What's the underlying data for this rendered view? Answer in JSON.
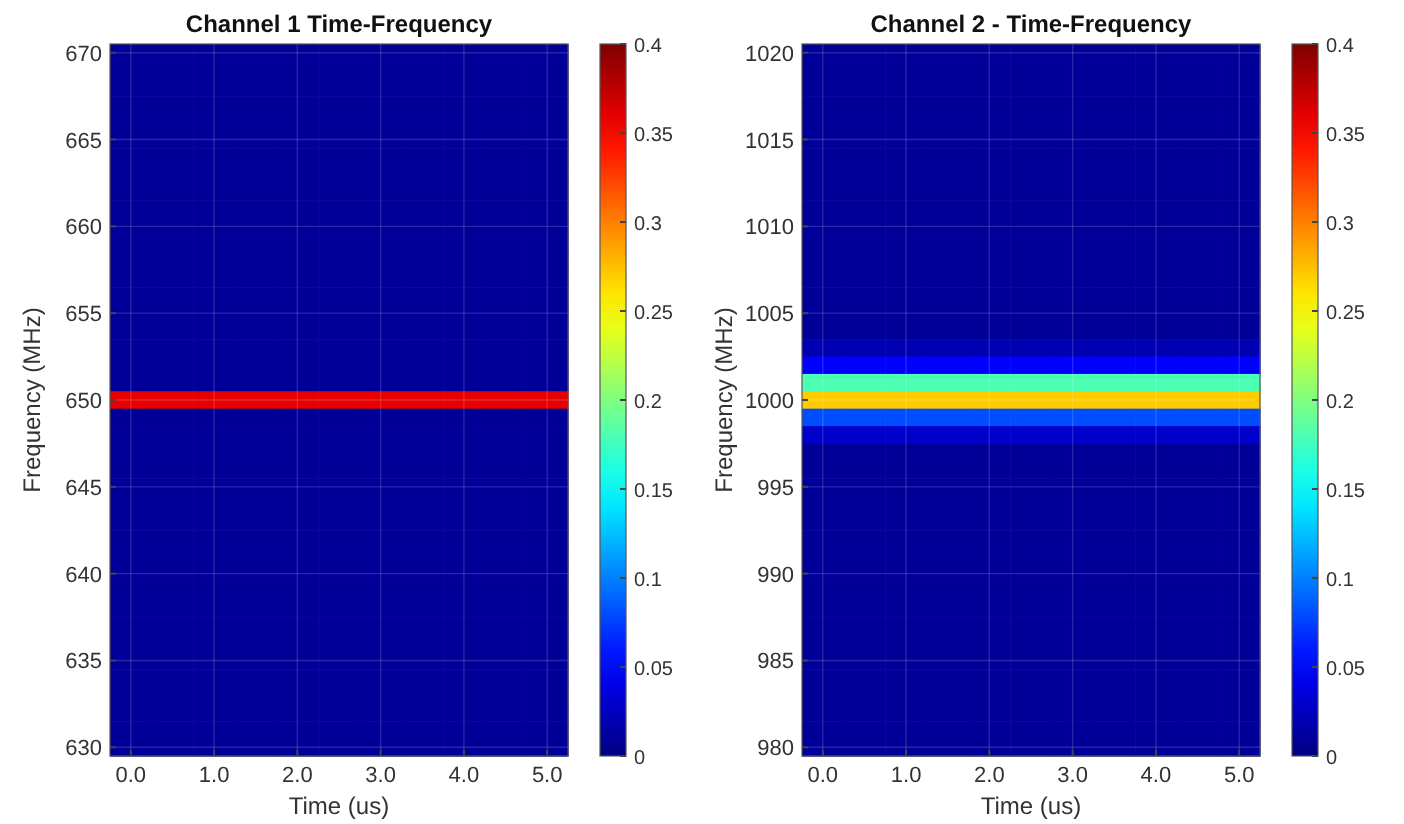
{
  "chart_data": [
    {
      "type": "heatmap",
      "title": "Channel 1 Time-Frequency",
      "xlabel": "Time (us)",
      "ylabel": "Frequency (MHz)",
      "categories": [
        "0.0",
        null,
        "1.0",
        null,
        "2.0",
        null,
        "3.0",
        null,
        "4.0",
        null,
        "5.0"
      ],
      "y_categories": [
        "670",
        null,
        null,
        null,
        null,
        "665",
        null,
        null,
        null,
        null,
        "660",
        null,
        null,
        null,
        null,
        "655",
        null,
        null,
        null,
        null,
        "650",
        null,
        null,
        null,
        null,
        "645",
        null,
        null,
        null,
        null,
        "640",
        null,
        null,
        null,
        null,
        "635",
        null,
        null,
        null,
        null,
        "630"
      ],
      "cells": [
        [
          0.01,
          0.01,
          0.01,
          0.01,
          0.01,
          0.01,
          0.01,
          0.01,
          0.01,
          0.01,
          0.01
        ],
        [
          0.01,
          0.01,
          0.01,
          0.01,
          0.01,
          0.01,
          0.01,
          0.01,
          0.01,
          0.01,
          0.01
        ],
        [
          0.01,
          0.01,
          0.01,
          0.01,
          0.01,
          0.01,
          0.01,
          0.01,
          0.01,
          0.01,
          0.01
        ],
        [
          0.01,
          0.01,
          0.01,
          0.01,
          0.01,
          0.01,
          0.01,
          0.01,
          0.01,
          0.01,
          0.01
        ],
        [
          0.01,
          0.01,
          0.01,
          0.01,
          0.01,
          0.01,
          0.01,
          0.01,
          0.01,
          0.01,
          0.01
        ],
        [
          0.01,
          0.01,
          0.01,
          0.01,
          0.01,
          0.01,
          0.01,
          0.01,
          0.01,
          0.01,
          0.01
        ],
        [
          0.01,
          0.01,
          0.01,
          0.01,
          0.01,
          0.01,
          0.01,
          0.01,
          0.01,
          0.01,
          0.01
        ],
        [
          0.01,
          0.01,
          0.01,
          0.01,
          0.01,
          0.01,
          0.01,
          0.01,
          0.01,
          0.01,
          0.01
        ],
        [
          0.01,
          0.01,
          0.01,
          0.01,
          0.01,
          0.01,
          0.01,
          0.01,
          0.01,
          0.01,
          0.01
        ],
        [
          0.01,
          0.01,
          0.01,
          0.01,
          0.01,
          0.01,
          0.01,
          0.01,
          0.01,
          0.01,
          0.01
        ],
        [
          0.01,
          0.01,
          0.01,
          0.01,
          0.01,
          0.01,
          0.01,
          0.01,
          0.01,
          0.01,
          0.01
        ],
        [
          0.01,
          0.01,
          0.01,
          0.01,
          0.01,
          0.01,
          0.01,
          0.01,
          0.01,
          0.01,
          0.01
        ],
        [
          0.01,
          0.01,
          0.01,
          0.01,
          0.01,
          0.01,
          0.01,
          0.01,
          0.01,
          0.01,
          0.01
        ],
        [
          0.01,
          0.01,
          0.01,
          0.01,
          0.01,
          0.01,
          0.01,
          0.01,
          0.01,
          0.01,
          0.01
        ],
        [
          0.01,
          0.01,
          0.01,
          0.01,
          0.01,
          0.01,
          0.01,
          0.01,
          0.01,
          0.01,
          0.01
        ],
        [
          0.01,
          0.01,
          0.01,
          0.01,
          0.01,
          0.01,
          0.01,
          0.01,
          0.01,
          0.01,
          0.01
        ],
        [
          0.01,
          0.01,
          0.01,
          0.01,
          0.01,
          0.01,
          0.01,
          0.01,
          0.01,
          0.01,
          0.01
        ],
        [
          0.01,
          0.01,
          0.01,
          0.01,
          0.01,
          0.01,
          0.01,
          0.01,
          0.01,
          0.01,
          0.01
        ],
        [
          0.01,
          0.01,
          0.01,
          0.01,
          0.01,
          0.01,
          0.01,
          0.01,
          0.01,
          0.01,
          0.01
        ],
        [
          0.01,
          0.01,
          0.01,
          0.01,
          0.01,
          0.01,
          0.01,
          0.01,
          0.01,
          0.01,
          0.01
        ],
        [
          0.36,
          0.36,
          0.36,
          0.36,
          0.36,
          0.36,
          0.36,
          0.36,
          0.36,
          0.36,
          0.36
        ],
        [
          0.01,
          0.01,
          0.01,
          0.01,
          0.01,
          0.01,
          0.01,
          0.01,
          0.01,
          0.01,
          0.01
        ],
        [
          0.01,
          0.01,
          0.01,
          0.01,
          0.01,
          0.01,
          0.01,
          0.01,
          0.01,
          0.01,
          0.01
        ],
        [
          0.01,
          0.01,
          0.01,
          0.01,
          0.01,
          0.01,
          0.01,
          0.01,
          0.01,
          0.01,
          0.01
        ],
        [
          0.01,
          0.01,
          0.01,
          0.01,
          0.01,
          0.01,
          0.01,
          0.01,
          0.01,
          0.01,
          0.01
        ],
        [
          0.01,
          0.01,
          0.01,
          0.01,
          0.01,
          0.01,
          0.01,
          0.01,
          0.01,
          0.01,
          0.01
        ],
        [
          0.01,
          0.01,
          0.01,
          0.01,
          0.01,
          0.01,
          0.01,
          0.01,
          0.01,
          0.01,
          0.01
        ],
        [
          0.01,
          0.01,
          0.01,
          0.01,
          0.01,
          0.01,
          0.01,
          0.01,
          0.01,
          0.01,
          0.01
        ],
        [
          0.01,
          0.01,
          0.01,
          0.01,
          0.01,
          0.01,
          0.01,
          0.01,
          0.01,
          0.01,
          0.01
        ],
        [
          0.01,
          0.01,
          0.01,
          0.01,
          0.01,
          0.01,
          0.01,
          0.01,
          0.01,
          0.01,
          0.01
        ],
        [
          0.01,
          0.01,
          0.01,
          0.01,
          0.01,
          0.01,
          0.01,
          0.01,
          0.01,
          0.01,
          0.01
        ],
        [
          0.01,
          0.01,
          0.01,
          0.01,
          0.01,
          0.01,
          0.01,
          0.01,
          0.01,
          0.01,
          0.01
        ],
        [
          0.01,
          0.01,
          0.01,
          0.01,
          0.01,
          0.01,
          0.01,
          0.01,
          0.01,
          0.01,
          0.01
        ],
        [
          0.01,
          0.01,
          0.01,
          0.01,
          0.01,
          0.01,
          0.01,
          0.01,
          0.01,
          0.01,
          0.01
        ],
        [
          0.01,
          0.01,
          0.01,
          0.01,
          0.01,
          0.01,
          0.01,
          0.01,
          0.01,
          0.01,
          0.01
        ],
        [
          0.01,
          0.01,
          0.01,
          0.01,
          0.01,
          0.01,
          0.01,
          0.01,
          0.01,
          0.01,
          0.01
        ],
        [
          0.01,
          0.01,
          0.01,
          0.01,
          0.01,
          0.01,
          0.01,
          0.01,
          0.01,
          0.01,
          0.01
        ],
        [
          0.01,
          0.01,
          0.01,
          0.01,
          0.01,
          0.01,
          0.01,
          0.01,
          0.01,
          0.01,
          0.01
        ],
        [
          0.01,
          0.01,
          0.01,
          0.01,
          0.01,
          0.01,
          0.01,
          0.01,
          0.01,
          0.01,
          0.01
        ],
        [
          0.01,
          0.01,
          0.01,
          0.01,
          0.01,
          0.01,
          0.01,
          0.01,
          0.01,
          0.01,
          0.01
        ],
        [
          0.01,
          0.01,
          0.01,
          0.01,
          0.01,
          0.01,
          0.01,
          0.01,
          0.01,
          0.01,
          0.01
        ]
      ],
      "clim": [
        0,
        0.4
      ],
      "cticks": [
        0,
        0.05,
        0.1,
        0.15,
        0.2,
        0.25,
        0.3,
        0.35,
        0.4
      ],
      "grid": true
    },
    {
      "type": "heatmap",
      "title": "Channel 2 - Time-Frequency",
      "xlabel": "Time (us)",
      "ylabel": "Frequency (MHz)",
      "categories": [
        "0.0",
        null,
        "1.0",
        null,
        "2.0",
        null,
        "3.0",
        null,
        "4.0",
        null,
        "5.0"
      ],
      "y_categories": [
        "1020",
        null,
        null,
        null,
        null,
        "1015",
        null,
        null,
        null,
        null,
        "1010",
        null,
        null,
        null,
        null,
        "1005",
        null,
        null,
        null,
        null,
        "1000",
        null,
        null,
        null,
        null,
        "995",
        null,
        null,
        null,
        null,
        "990",
        null,
        null,
        null,
        null,
        "985",
        null,
        null,
        null,
        null,
        "980"
      ],
      "cells": [
        [
          0.01,
          0.01,
          0.01,
          0.01,
          0.01,
          0.01,
          0.01,
          0.01,
          0.01,
          0.01,
          0.01
        ],
        [
          0.01,
          0.01,
          0.01,
          0.01,
          0.01,
          0.01,
          0.01,
          0.01,
          0.01,
          0.01,
          0.01
        ],
        [
          0.01,
          0.01,
          0.01,
          0.01,
          0.01,
          0.01,
          0.01,
          0.01,
          0.01,
          0.01,
          0.01
        ],
        [
          0.01,
          0.01,
          0.01,
          0.01,
          0.01,
          0.01,
          0.01,
          0.01,
          0.01,
          0.01,
          0.01
        ],
        [
          0.01,
          0.01,
          0.01,
          0.01,
          0.01,
          0.01,
          0.01,
          0.01,
          0.01,
          0.01,
          0.01
        ],
        [
          0.01,
          0.01,
          0.01,
          0.01,
          0.01,
          0.01,
          0.01,
          0.01,
          0.01,
          0.01,
          0.01
        ],
        [
          0.01,
          0.01,
          0.01,
          0.01,
          0.01,
          0.01,
          0.01,
          0.01,
          0.01,
          0.01,
          0.01
        ],
        [
          0.01,
          0.01,
          0.01,
          0.01,
          0.01,
          0.01,
          0.01,
          0.01,
          0.01,
          0.01,
          0.01
        ],
        [
          0.01,
          0.01,
          0.01,
          0.01,
          0.01,
          0.01,
          0.01,
          0.01,
          0.01,
          0.01,
          0.01
        ],
        [
          0.01,
          0.01,
          0.01,
          0.01,
          0.01,
          0.01,
          0.01,
          0.01,
          0.01,
          0.01,
          0.01
        ],
        [
          0.01,
          0.01,
          0.01,
          0.01,
          0.01,
          0.01,
          0.01,
          0.01,
          0.01,
          0.01,
          0.01
        ],
        [
          0.01,
          0.01,
          0.01,
          0.01,
          0.01,
          0.01,
          0.01,
          0.01,
          0.01,
          0.01,
          0.01
        ],
        [
          0.01,
          0.01,
          0.01,
          0.01,
          0.01,
          0.01,
          0.01,
          0.01,
          0.01,
          0.01,
          0.01
        ],
        [
          0.01,
          0.01,
          0.01,
          0.01,
          0.01,
          0.01,
          0.01,
          0.01,
          0.01,
          0.01,
          0.01
        ],
        [
          0.01,
          0.01,
          0.01,
          0.01,
          0.01,
          0.01,
          0.01,
          0.01,
          0.01,
          0.01,
          0.01
        ],
        [
          0.01,
          0.01,
          0.01,
          0.01,
          0.01,
          0.01,
          0.01,
          0.01,
          0.01,
          0.01,
          0.01
        ],
        [
          0.01,
          0.01,
          0.01,
          0.01,
          0.01,
          0.01,
          0.01,
          0.01,
          0.01,
          0.01,
          0.01
        ],
        [
          0.02,
          0.02,
          0.02,
          0.02,
          0.02,
          0.02,
          0.02,
          0.02,
          0.02,
          0.02,
          0.02
        ],
        [
          0.05,
          0.05,
          0.05,
          0.05,
          0.05,
          0.05,
          0.05,
          0.05,
          0.05,
          0.05,
          0.05
        ],
        [
          0.18,
          0.18,
          0.18,
          0.18,
          0.18,
          0.18,
          0.18,
          0.18,
          0.18,
          0.18,
          0.18
        ],
        [
          0.27,
          0.27,
          0.27,
          0.27,
          0.27,
          0.27,
          0.27,
          0.27,
          0.27,
          0.27,
          0.27
        ],
        [
          0.08,
          0.08,
          0.08,
          0.08,
          0.08,
          0.08,
          0.08,
          0.08,
          0.08,
          0.08,
          0.08
        ],
        [
          0.03,
          0.03,
          0.03,
          0.03,
          0.03,
          0.03,
          0.03,
          0.03,
          0.03,
          0.03,
          0.03
        ],
        [
          0.01,
          0.01,
          0.01,
          0.01,
          0.01,
          0.01,
          0.01,
          0.01,
          0.01,
          0.01,
          0.01
        ],
        [
          0.01,
          0.01,
          0.01,
          0.01,
          0.01,
          0.01,
          0.01,
          0.01,
          0.01,
          0.01,
          0.01
        ],
        [
          0.01,
          0.01,
          0.01,
          0.01,
          0.01,
          0.01,
          0.01,
          0.01,
          0.01,
          0.01,
          0.01
        ],
        [
          0.01,
          0.01,
          0.01,
          0.01,
          0.01,
          0.01,
          0.01,
          0.01,
          0.01,
          0.01,
          0.01
        ],
        [
          0.01,
          0.01,
          0.01,
          0.01,
          0.01,
          0.01,
          0.01,
          0.01,
          0.01,
          0.01,
          0.01
        ],
        [
          0.01,
          0.01,
          0.01,
          0.01,
          0.01,
          0.01,
          0.01,
          0.01,
          0.01,
          0.01,
          0.01
        ],
        [
          0.01,
          0.01,
          0.01,
          0.01,
          0.01,
          0.01,
          0.01,
          0.01,
          0.01,
          0.01,
          0.01
        ],
        [
          0.01,
          0.01,
          0.01,
          0.01,
          0.01,
          0.01,
          0.01,
          0.01,
          0.01,
          0.01,
          0.01
        ],
        [
          0.01,
          0.01,
          0.01,
          0.01,
          0.01,
          0.01,
          0.01,
          0.01,
          0.01,
          0.01,
          0.01
        ],
        [
          0.01,
          0.01,
          0.01,
          0.01,
          0.01,
          0.01,
          0.01,
          0.01,
          0.01,
          0.01,
          0.01
        ],
        [
          0.01,
          0.01,
          0.01,
          0.01,
          0.01,
          0.01,
          0.01,
          0.01,
          0.01,
          0.01,
          0.01
        ],
        [
          0.01,
          0.01,
          0.01,
          0.01,
          0.01,
          0.01,
          0.01,
          0.01,
          0.01,
          0.01,
          0.01
        ],
        [
          0.01,
          0.01,
          0.01,
          0.01,
          0.01,
          0.01,
          0.01,
          0.01,
          0.01,
          0.01,
          0.01
        ],
        [
          0.01,
          0.01,
          0.01,
          0.01,
          0.01,
          0.01,
          0.01,
          0.01,
          0.01,
          0.01,
          0.01
        ],
        [
          0.01,
          0.01,
          0.01,
          0.01,
          0.01,
          0.01,
          0.01,
          0.01,
          0.01,
          0.01,
          0.01
        ],
        [
          0.01,
          0.01,
          0.01,
          0.01,
          0.01,
          0.01,
          0.01,
          0.01,
          0.01,
          0.01,
          0.01
        ],
        [
          0.01,
          0.01,
          0.01,
          0.01,
          0.01,
          0.01,
          0.01,
          0.01,
          0.01,
          0.01,
          0.01
        ],
        [
          0.01,
          0.01,
          0.01,
          0.01,
          0.01,
          0.01,
          0.01,
          0.01,
          0.01,
          0.01,
          0.01
        ]
      ],
      "clim": [
        0,
        0.4
      ],
      "cticks": [
        0,
        0.05,
        0.1,
        0.15,
        0.2,
        0.25,
        0.3,
        0.35,
        0.4
      ],
      "grid": true
    }
  ]
}
